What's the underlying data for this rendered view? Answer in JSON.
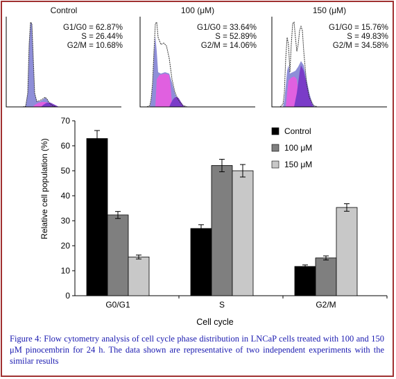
{
  "histograms": [
    {
      "title": "Control",
      "stats": [
        "G1/G0 = 62.87%",
        "S = 26.44%",
        "G2/M =  10.68%"
      ]
    },
    {
      "title": "100 (μM)",
      "stats": [
        "G1/G0 = 33.64%",
        "S = 52.89%",
        "G2/M =  14.06%"
      ]
    },
    {
      "title": "150 (μM)",
      "stats": [
        "G1/G0 = 15.76%",
        "S = 49.83%",
        "G2/M =  34.58%"
      ]
    }
  ],
  "chart_data": {
    "type": "bar",
    "categories": [
      "G0/G1",
      "S",
      "G2/M"
    ],
    "series": [
      {
        "name": "Control",
        "values": [
          62.9,
          26.9,
          11.7
        ],
        "errors": [
          3.2,
          1.5,
          0.6
        ],
        "color": "#000000"
      },
      {
        "name": "100 μM",
        "values": [
          32.3,
          52.1,
          15.1
        ],
        "errors": [
          1.4,
          2.5,
          0.8
        ],
        "color": "#7f7f7f"
      },
      {
        "name": "150 μM",
        "values": [
          15.5,
          50.0,
          35.3
        ],
        "errors": [
          0.8,
          2.5,
          1.5
        ],
        "color": "#c8c8c8"
      }
    ],
    "xlabel": "Cell cycle",
    "ylabel": "Relative cell population (%)",
    "ylim": [
      0,
      70
    ],
    "yticks": [
      0,
      10,
      20,
      30,
      40,
      50,
      60,
      70
    ],
    "legend_position": "top-right"
  },
  "caption": "Figure 4: Flow cytometry analysis of cell cycle phase distribution in LNCaP cells treated with 100 and 150 μM pinocembrin for 24 h. The data shown are representative of two independent experiments with the similar results",
  "colors": {
    "border": "#a03030",
    "caption": "#1a1ab0",
    "g1_fill": "#8e8ed8",
    "s_fill": "#e060e0",
    "g2_fill": "#7a3cc8"
  }
}
